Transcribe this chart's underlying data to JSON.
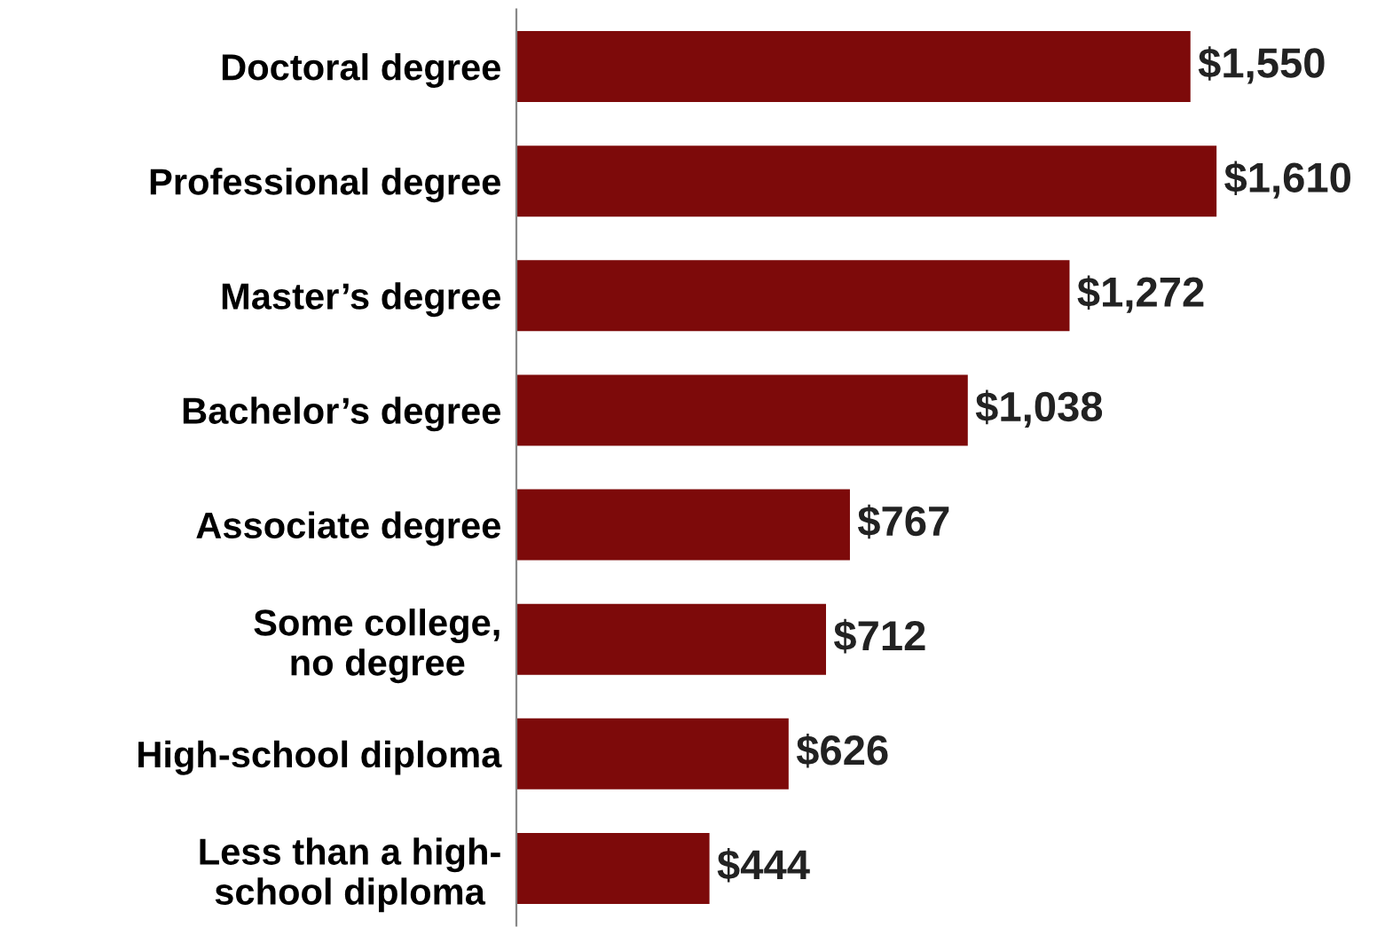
{
  "chart_data": {
    "type": "bar",
    "orientation": "horizontal",
    "categories": [
      "Doctoral degree",
      "Professional degree",
      "Master’s degree",
      "Bachelor’s degree",
      "Associate degree",
      "Some college,\nno degree",
      "High-school diploma",
      "Less than a high-\nschool diploma"
    ],
    "values": [
      1550,
      1610,
      1272,
      1038,
      767,
      712,
      626,
      444
    ],
    "value_labels": [
      "$1,550",
      "$1,610",
      "$1,272",
      "$1,038",
      "$767",
      "$712",
      "$626",
      "$444"
    ],
    "color": "#7d0a0a",
    "grid": false,
    "legend": false
  }
}
